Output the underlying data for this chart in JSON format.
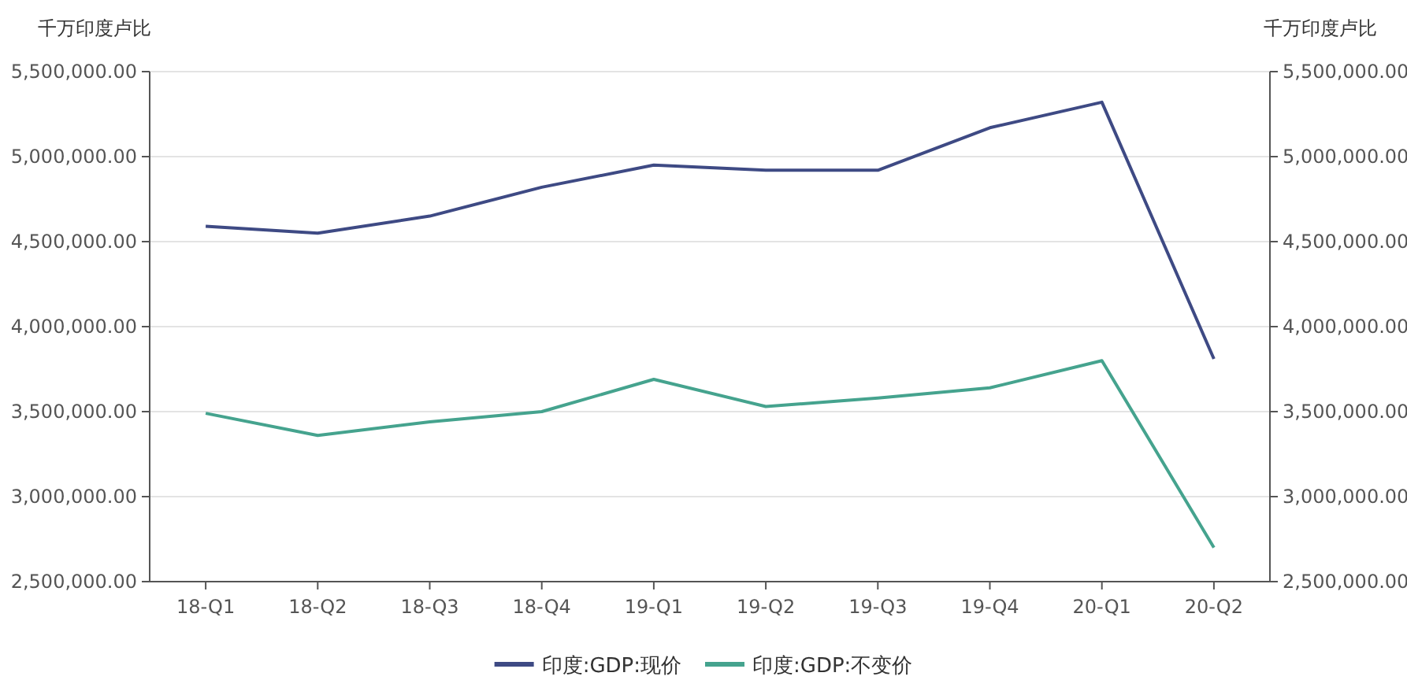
{
  "chart_data": {
    "type": "line",
    "ylabel": "千万印度卢比",
    "y2label": "千万印度卢比",
    "categories": [
      "18-Q1",
      "18-Q2",
      "18-Q3",
      "18-Q4",
      "19-Q1",
      "19-Q2",
      "19-Q3",
      "19-Q4",
      "20-Q1",
      "20-Q2"
    ],
    "series": [
      {
        "name": "印度:GDP:现价",
        "color": "#3e4a84",
        "values": [
          4590000,
          4550000,
          4650000,
          4820000,
          4950000,
          4920000,
          4920000,
          5170000,
          5320000,
          3810000
        ]
      },
      {
        "name": "印度:GDP:不变价",
        "color": "#45a38e",
        "values": [
          3490000,
          3360000,
          3440000,
          3500000,
          3690000,
          3530000,
          3580000,
          3640000,
          3800000,
          2700000
        ]
      }
    ],
    "ylim": [
      2500000,
      5500000
    ],
    "yticks": [
      {
        "value": 2500000,
        "label": "2,500,000.00"
      },
      {
        "value": 3000000,
        "label": "3,000,000.00"
      },
      {
        "value": 3500000,
        "label": "3,500,000.00"
      },
      {
        "value": 4000000,
        "label": "4,000,000.00"
      },
      {
        "value": 4500000,
        "label": "4,500,000.00"
      },
      {
        "value": 5000000,
        "label": "5,000,000.00"
      },
      {
        "value": 5500000,
        "label": "5,500,000.00"
      }
    ],
    "y2lim": [
      2500000,
      5500000
    ],
    "y2ticks": [
      {
        "value": 2500000,
        "label": "2,500,000.00"
      },
      {
        "value": 3000000,
        "label": "3,000,000.00"
      },
      {
        "value": 3500000,
        "label": "3,500,000.00"
      },
      {
        "value": 4000000,
        "label": "4,000,000.00"
      },
      {
        "value": 4500000,
        "label": "4,500,000.00"
      },
      {
        "value": 5000000,
        "label": "5,000,000.00"
      },
      {
        "value": 5500000,
        "label": "5,500,000.00"
      }
    ],
    "grid": "y",
    "legend": "bottom",
    "marker": "none",
    "line_style": "solid"
  }
}
